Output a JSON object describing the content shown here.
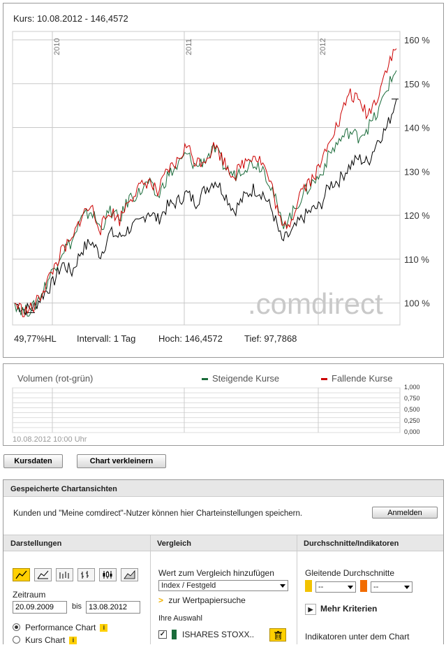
{
  "main_chart": {
    "header": "Kurs: 10.08.2012 - 146,4572",
    "year_labels": [
      "2010",
      "2011",
      "2012"
    ],
    "y_labels": [
      "160 %",
      "150 %",
      "140 %",
      "130 %",
      "120 %",
      "110 %",
      "100 %"
    ],
    "watermark": ".comdirect",
    "stats": {
      "hl": "49,77%HL",
      "intervall": "Intervall: 1 Tag",
      "hoch": "Hoch: 146,4572",
      "tief": "Tief: 97,7868"
    }
  },
  "chart_data": {
    "type": "line",
    "x_range": [
      "2009-09-20",
      "2012-08-13"
    ],
    "ylim": [
      95,
      160
    ],
    "y_unit": "%",
    "grid": true,
    "series": [
      {
        "name": "ISHARES STOXX..",
        "color": "#000000",
        "values": [
          100,
          98.5,
          99,
          102,
          104.5,
          109,
          107,
          112,
          114,
          111,
          116,
          115,
          117,
          118,
          121,
          119,
          122,
          123,
          125,
          123,
          126,
          128,
          125,
          121,
          124,
          126,
          125,
          121,
          114,
          116,
          119,
          121,
          122,
          127,
          128,
          131,
          133,
          132,
          137,
          140,
          146.5
        ]
      },
      {
        "color": "#1a6b3a",
        "values": [
          100,
          98,
          99,
          103,
          107.5,
          112,
          114,
          119,
          121,
          117,
          121,
          119,
          124,
          125,
          127.5,
          124,
          129,
          131,
          134,
          131,
          133,
          135,
          131,
          129,
          131,
          132,
          131,
          126,
          118,
          120,
          124,
          127,
          129,
          134,
          137,
          139,
          138,
          140,
          143,
          149,
          153
        ]
      },
      {
        "color": "#cc0000",
        "values": [
          100,
          98,
          99,
          103,
          107.5,
          112,
          114,
          120,
          122,
          117,
          121,
          119,
          124,
          126,
          128,
          125,
          130,
          132,
          136,
          132,
          133,
          136,
          132,
          129,
          132,
          134,
          132,
          126,
          117,
          119,
          126,
          128,
          131,
          138,
          141,
          148,
          146,
          143,
          147,
          154,
          158
        ]
      }
    ]
  },
  "volume": {
    "title": "Volumen (rot-grün)",
    "legend_up": "Steigende Kurse",
    "legend_down": "Fallende Kurse",
    "y_labels": [
      "1,000",
      "0,750",
      "0,500",
      "0,250",
      "0,000"
    ],
    "timestamp": "10.08.2012 10:00 Uhr",
    "up_color": "#1a6b3a",
    "down_color": "#cc0000"
  },
  "buttons": {
    "kursdaten": "Kursdaten",
    "chart_verkleinern": "Chart verkleinern"
  },
  "saved": {
    "title": "Gespeicherte Chartansichten",
    "text": "Kunden und \"Meine comdirect\"-Nutzer können hier Charteinstellungen speichern.",
    "login": "Anmelden"
  },
  "darstellungen": {
    "title": "Darstellungen",
    "zeitraum_label": "Zeitraum",
    "from": "20.09.2009",
    "bis": "bis",
    "to": "13.08.2012",
    "performance_chart": "Performance Chart",
    "kurs_chart": "Kurs Chart"
  },
  "vergleich": {
    "title": "Vergleich",
    "add_label": "Wert zum Vergleich hinzufügen",
    "select_value": "Index / Festgeld",
    "search_link": "zur Wertpapiersuche",
    "ihre_auswahl": "Ihre Auswahl",
    "selection_name": "ISHARES STOXX..",
    "selection_color": "#1a6b3a"
  },
  "durchschnitte": {
    "title": "Durchschnitte/Indikatoren",
    "gleitende": "Gleitende Durchschnitte",
    "ma1_value": "--",
    "ma2_value": "--",
    "ma1_color": "#f2c200",
    "ma2_color": "#f26c00",
    "mehr_kriterien": "Mehr Kriterien",
    "indikatoren": "Indikatoren unter dem Chart"
  }
}
